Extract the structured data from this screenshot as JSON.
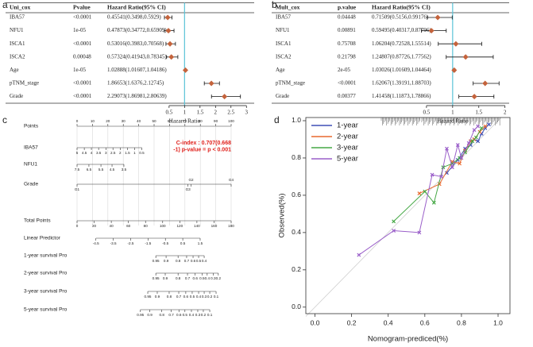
{
  "chart_data": [
    {
      "type": "forest",
      "panel": "a",
      "columns": [
        "Uni_cox",
        "Pvalue",
        "Hazard Ratio(95% CI)"
      ],
      "categories": [
        "IBA57",
        "NFU1",
        "ISCA1",
        "ISCA2",
        "Age",
        "pTNM_stage",
        "Grade"
      ],
      "pvalues": [
        "<0.0001",
        "1e-05",
        "<0.0001",
        "0.00048",
        "1e-05",
        "<0.0001",
        "<0.0001"
      ],
      "values": [
        0.45541,
        0.47873,
        0.53016,
        0.57324,
        1.02888,
        1.86653,
        2.29073
      ],
      "lower": [
        0.3498,
        0.34772,
        0.3983,
        0.41943,
        1.01607,
        1.6376,
        1.86981
      ],
      "upper": [
        0.5929,
        0.65909,
        0.70568,
        0.78345,
        1.04186,
        2.12745,
        2.80639
      ],
      "value_labels": [
        "0.45541(0.3498,0.5929)",
        "0.47873(0.34772,0.65909)",
        "0.53016(0.3983,0.70568)",
        "0.57324(0.41943,0.78345)",
        "1.02888(1.01607,1.04186)",
        "1.86653(1.6376,2.12745)",
        "2.29073(1.86981,2.80639)"
      ],
      "xlim": [
        0.17,
        3.25
      ],
      "xticks": [
        0.5,
        1,
        1.5,
        2,
        2.5,
        3
      ],
      "xlabel": "Hazard Ratio",
      "reference": 1,
      "color": "#c4633c",
      "ref_color": "#5bc3d8"
    },
    {
      "type": "forest",
      "panel": "b",
      "columns": [
        "Mult_cox",
        "p.value",
        "Hazard Ratio(95% CI)"
      ],
      "categories": [
        "IBA57",
        "NFU1",
        "ISCA1",
        "ISCA2",
        "Age",
        "pTNM_stage",
        "Grade"
      ],
      "pvalues": [
        "0.04448",
        "0.00891",
        "0.75708",
        "0.21798",
        "2e-05",
        "<0.0001",
        "0.00377"
      ],
      "values": [
        0.71509,
        0.59495,
        1.06204,
        1.24807,
        1.03026,
        1.62067,
        1.41458
      ],
      "lower": [
        0.5156,
        0.40317,
        0.72528,
        0.87726,
        1.01609,
        1.39191,
        1.11873
      ],
      "upper": [
        0.99176,
        0.87796,
        1.55514,
        1.77562,
        1.04464,
        1.88703,
        1.78866
      ],
      "value_labels": [
        "0.71509(0.5156,0.99176)",
        "0.59495(0.40317,0.87796)",
        "1.06204(0.72528,1.55514)",
        "1.24807(0.87726,1.77562)",
        "1.03026(1.01609,1.04464)",
        "1.62067(1.39191,1.88703)",
        "1.41458(1.11873,1.78866)"
      ],
      "xlim": [
        0.35,
        2.08
      ],
      "xticks": [
        0.5,
        1,
        1.5,
        2
      ],
      "xlabel": "Hazard Ratio",
      "reference": 1,
      "color": "#c4633c",
      "ref_color": "#5bc3d8"
    },
    {
      "type": "nomogram",
      "panel": "c",
      "annotation": [
        "C-index : 0.707(0.668",
        "-1) p-value = p < 0.001"
      ],
      "annotation_color": "#e0201b",
      "points_lim": [
        0,
        100
      ],
      "total_lim": [
        0,
        180
      ],
      "rows": [
        {
          "name": "Points",
          "scale": "points",
          "ticks": [
            0,
            10,
            20,
            30,
            40,
            50,
            60,
            70,
            80,
            90,
            100
          ]
        },
        {
          "name": "IBA57",
          "scale": "points",
          "ticks": [
            5,
            4.5,
            4,
            3.5,
            3,
            2.5,
            2,
            1.5,
            1,
            0.5
          ],
          "positions": [
            0,
            4.7,
            9.3,
            14,
            18.7,
            23.3,
            28,
            32.7,
            37.3,
            42
          ]
        },
        {
          "name": "NFU1",
          "scale": "points",
          "ticks": [
            7.5,
            6.5,
            5.5,
            4.5,
            3.5
          ],
          "positions": [
            0,
            7.7,
            15.5,
            22.7,
            30.4
          ]
        },
        {
          "name": "Grade",
          "scale": "points",
          "ticks": [
            "G1",
            "G2",
            "G3",
            "G4"
          ],
          "positions": [
            0,
            74,
            72,
            100
          ]
        },
        {
          "name": "Total Points",
          "scale": "total",
          "ticks": [
            0,
            20,
            40,
            60,
            80,
            100,
            120,
            140,
            160,
            180
          ]
        },
        {
          "name": "Linear Predictor",
          "scale": "total",
          "ticks": [
            -4.5,
            -3.5,
            -2.5,
            -1.5,
            -0.5,
            0.5,
            1.5
          ],
          "positions": [
            22,
            42.3,
            62.6,
            82.9,
            103.2,
            123.5,
            143.8
          ]
        },
        {
          "name": "1-year survival Pro",
          "scale": "total",
          "ticks": [
            0.95,
            0.9,
            0.8,
            0.7,
            0.6,
            0.5,
            0.4
          ],
          "positions": [
            92,
            104,
            118,
            128,
            135.5,
            142,
            148.5
          ]
        },
        {
          "name": "2-year survival Pro",
          "scale": "total",
          "ticks": [
            0.95,
            0.9,
            0.8,
            0.7,
            0.6,
            0.5,
            0.4,
            0.3,
            0.2
          ],
          "positions": [
            92,
            103,
            118,
            129,
            138,
            146,
            152,
            159,
            165
          ]
        },
        {
          "name": "3-year survival Pro",
          "scale": "total",
          "ticks": [
            0.95,
            0.9,
            0.8,
            0.7,
            0.6,
            0.5,
            0.4,
            0.3,
            0.2,
            0.1
          ],
          "positions": [
            82.6,
            93.7,
            107.6,
            118.8,
            127,
            134.5,
            142,
            148.5,
            155,
            162.4
          ]
        },
        {
          "name": "5-year survival Pro",
          "scale": "total",
          "ticks": [
            0.95,
            0.9,
            0.8,
            0.7,
            0.6,
            0.5,
            0.4,
            0.3,
            0.2,
            0.1
          ],
          "positions": [
            74,
            85,
            99,
            110,
            119,
            126,
            133.6,
            141,
            147.5,
            155
          ]
        }
      ]
    },
    {
      "type": "calibration",
      "panel": "d",
      "xlabel": "Nomogram-prediced(%)",
      "ylabel": "Observed(%)",
      "xlim": [
        -0.05,
        1.065
      ],
      "ylim": [
        -0.035,
        1.017
      ],
      "xticks": [
        {
          "value": 0,
          "label": "0.0"
        },
        0.2,
        0.4,
        0.6,
        0.8,
        {
          "value": 1,
          "label": "1.0"
        }
      ],
      "yticks": [
        {
          "value": 0,
          "label": "0.0"
        },
        0.2,
        0.4,
        0.6,
        0.8,
        {
          "value": 1,
          "label": "1.0"
        }
      ],
      "legend": "upper left",
      "series": [
        {
          "name": "1-year",
          "color": "#3e4fb5",
          "x": [
            0.72,
            0.78,
            0.82,
            0.85,
            0.87,
            0.89,
            0.91,
            0.93,
            0.95
          ],
          "values": [
            0.72,
            0.79,
            0.85,
            0.87,
            0.9,
            0.89,
            0.93,
            0.96,
            0.98
          ]
        },
        {
          "name": "2-year",
          "color": "#e8692e",
          "x": [
            0.57,
            0.68,
            0.75,
            0.79,
            0.82,
            0.85,
            0.87,
            0.9,
            0.93
          ],
          "values": [
            0.61,
            0.66,
            0.78,
            0.77,
            0.84,
            0.89,
            0.9,
            0.94,
            0.97
          ]
        },
        {
          "name": "3-year",
          "color": "#45a845",
          "x": [
            0.43,
            0.6,
            0.65,
            0.7,
            0.75,
            0.79,
            0.82,
            0.86,
            0.88,
            0.91
          ],
          "values": [
            0.46,
            0.62,
            0.56,
            0.75,
            0.77,
            0.8,
            0.83,
            0.89,
            0.91,
            0.96
          ]
        },
        {
          "name": "5-year",
          "color": "#9a5fc9",
          "x": [
            0.24,
            0.43,
            0.57,
            0.64,
            0.69,
            0.72,
            0.75,
            0.78,
            0.8,
            0.84,
            0.87,
            0.89
          ],
          "values": [
            0.28,
            0.41,
            0.4,
            0.71,
            0.7,
            0.85,
            0.75,
            0.87,
            0.8,
            0.88,
            0.95,
            0.97
          ]
        }
      ]
    }
  ]
}
